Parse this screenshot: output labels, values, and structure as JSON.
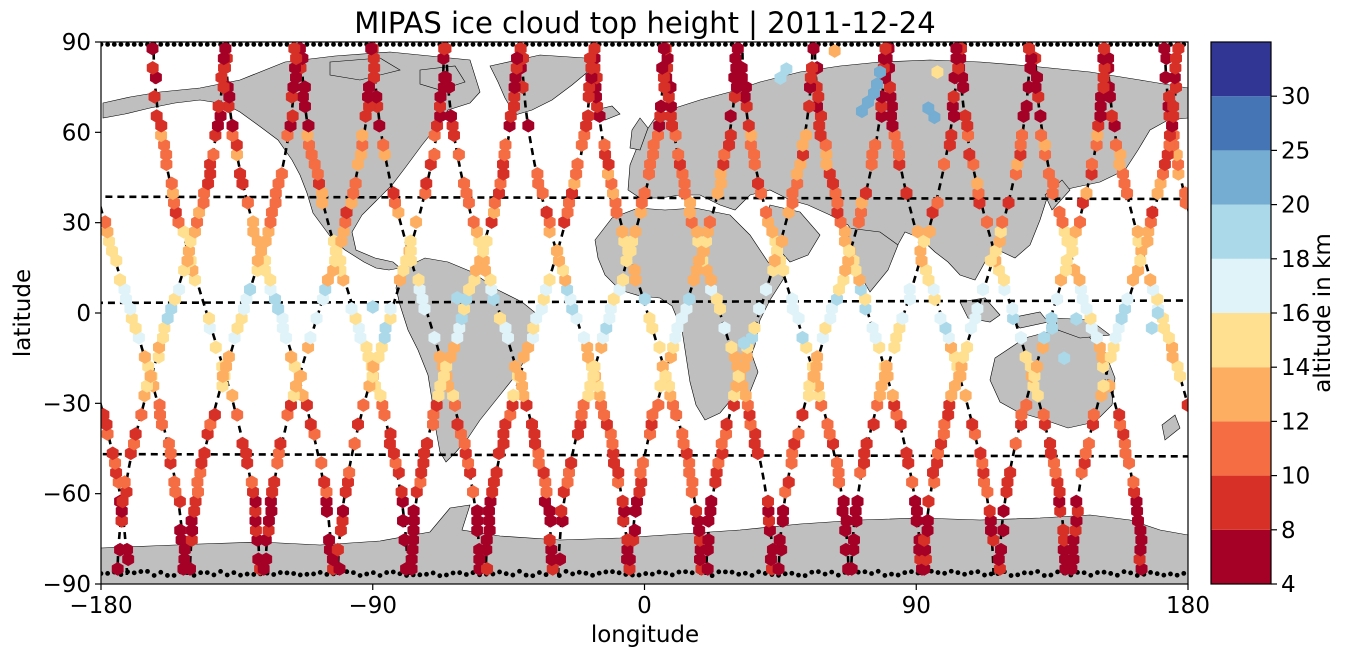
{
  "chart_data": {
    "type": "scatter",
    "title": "MIPAS ice cloud top height | 2011-12-24",
    "xlabel": "longitude",
    "ylabel": "latitude",
    "xlim": [
      -180,
      180
    ],
    "ylim": [
      -90,
      90
    ],
    "xticks": [
      -180,
      -90,
      0,
      90,
      180
    ],
    "yticks": [
      -90,
      -60,
      -30,
      0,
      30,
      60,
      90
    ],
    "xtick_labels": [
      "−180",
      "−90",
      "0",
      "90",
      "180"
    ],
    "ytick_labels": [
      "−90",
      "−60",
      "−30",
      "0",
      "30",
      "60",
      "90"
    ],
    "grid": false,
    "marker": "hexagon",
    "colorbar": {
      "label": "altitude in km",
      "bounds": [
        4,
        8,
        10,
        12,
        14,
        16,
        18,
        20,
        25,
        30
      ],
      "tick_labels": [
        "4",
        "8",
        "10",
        "12",
        "14",
        "16",
        "18",
        "20",
        "25",
        "30"
      ],
      "colors": [
        "#a50026",
        "#d73027",
        "#f46d43",
        "#fdae61",
        "#fee090",
        "#e0f3f8",
        "#abd9e9",
        "#74add1",
        "#4575b4",
        "#313695"
      ]
    },
    "land_color": "#bfbfbf",
    "track_style": "black dashed lines (satellite ground tracks)",
    "orbit_tracks": {
      "description": "Pole-to-pole MIPAS ground tracks; each track crosses the equator at the given longitude, ascending tracks (daytime) and descending tracks (night) alternate",
      "descending_equator_crossings": [
        -170,
        -145,
        -121,
        -96,
        -72,
        -48,
        -23,
        1,
        25,
        50,
        74,
        98,
        122,
        147,
        171
      ],
      "ascending_equator_crossings": [
        -157,
        -133,
        -108,
        -84,
        -60,
        -35,
        -11,
        13,
        38,
        62,
        86,
        110,
        135,
        159
      ],
      "track_amplitude_deg_lon": 11
    },
    "cloud_top_height_by_latitude_band_km": [
      {
        "lat_band": [
          60,
          90
        ],
        "typical_height_km": 8
      },
      {
        "lat_band": [
          30,
          60
        ],
        "typical_height_km": 11
      },
      {
        "lat_band": [
          10,
          30
        ],
        "typical_height_km": 14
      },
      {
        "lat_band": [
          -10,
          10
        ],
        "typical_height_km": 17
      },
      {
        "lat_band": [
          -30,
          -10
        ],
        "typical_height_km": 14
      },
      {
        "lat_band": [
          -60,
          -30
        ],
        "typical_height_km": 10
      },
      {
        "lat_band": [
          -90,
          -60
        ],
        "typical_height_km": 7
      }
    ],
    "notable_points": [
      {
        "lon": 78,
        "lat": 80,
        "height_km": 22
      },
      {
        "lon": 77,
        "lat": 76,
        "height_km": 22
      },
      {
        "lon": 76,
        "lat": 73,
        "height_km": 22
      },
      {
        "lon": 74,
        "lat": 70,
        "height_km": 22
      },
      {
        "lon": 72,
        "lat": 67,
        "height_km": 22
      },
      {
        "lon": 94,
        "lat": 68,
        "height_km": 22
      },
      {
        "lon": 96,
        "lat": 65,
        "height_km": 22
      },
      {
        "lon": 45,
        "lat": 78,
        "height_km": 19
      },
      {
        "lon": 47,
        "lat": 81,
        "height_km": 19
      },
      {
        "lon": 63,
        "lat": 87,
        "height_km": 13
      },
      {
        "lon": 97,
        "lat": 80,
        "height_km": 15
      },
      {
        "lon": -90,
        "lat": 2,
        "height_km": 19
      },
      {
        "lon": -62,
        "lat": 5,
        "height_km": 19
      },
      {
        "lon": 33,
        "lat": -10,
        "height_km": 19
      },
      {
        "lon": 135,
        "lat": -5,
        "height_km": 19
      },
      {
        "lon": 139,
        "lat": -15,
        "height_km": 19
      },
      {
        "lon": 143,
        "lat": -2,
        "height_km": 19
      },
      {
        "lon": 170,
        "lat": 0,
        "height_km": 19
      },
      {
        "lon": 168,
        "lat": -5,
        "height_km": 19
      }
    ]
  }
}
